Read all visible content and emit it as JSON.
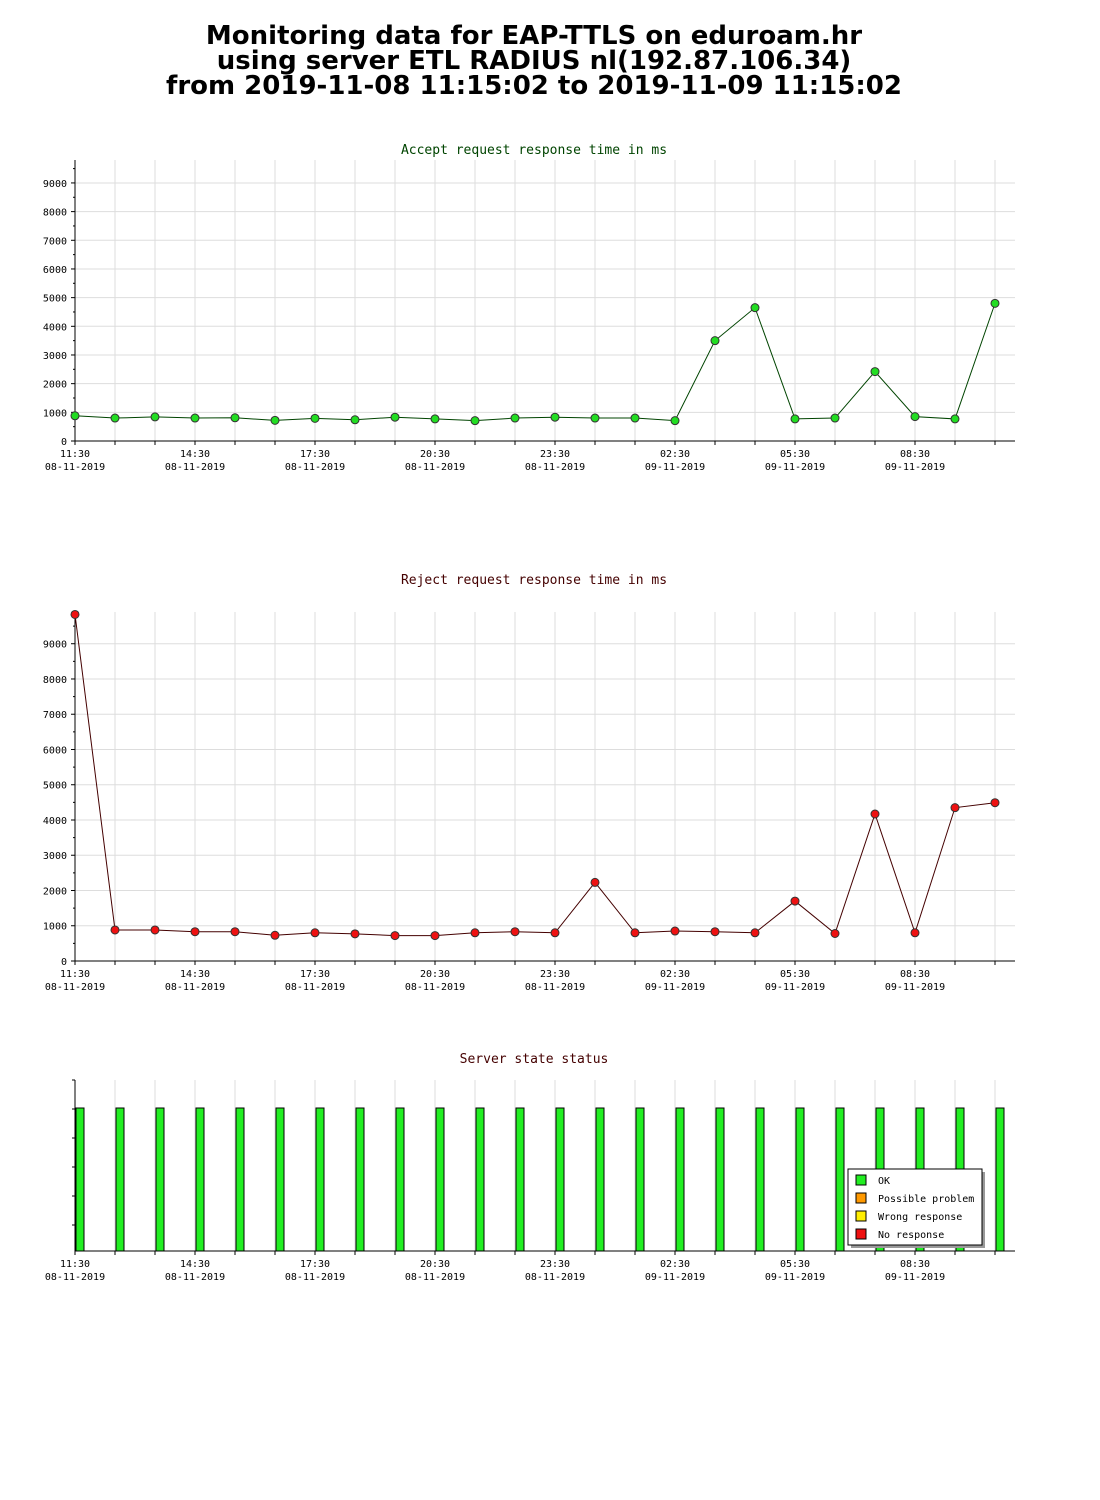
{
  "page": {
    "title_lines": [
      "Monitoring data for EAP-TTLS on eduroam.hr",
      "using server ETL RADIUS nl(192.87.106.34)",
      "from 2019-11-08 11:15:02 to 2019-11-09 11:15:02"
    ]
  },
  "chart_data": [
    {
      "type": "line",
      "title": "Accept request response time in ms",
      "title_color": "#004400",
      "line_color": "#004400",
      "marker_color": "#22dd22",
      "grid": true,
      "ylim": [
        0,
        9800
      ],
      "yticks": [
        0,
        1000,
        2000,
        3000,
        4000,
        5000,
        6000,
        7000,
        8000,
        9000
      ],
      "xlim": [
        0,
        23.5
      ],
      "xticks": [
        {
          "x": 0,
          "time": "11:30",
          "date": "08-11-2019"
        },
        {
          "x": 3,
          "time": "14:30",
          "date": "08-11-2019"
        },
        {
          "x": 6,
          "time": "17:30",
          "date": "08-11-2019"
        },
        {
          "x": 9,
          "time": "20:30",
          "date": "08-11-2019"
        },
        {
          "x": 12,
          "time": "23:30",
          "date": "08-11-2019"
        },
        {
          "x": 15,
          "time": "02:30",
          "date": "09-11-2019"
        },
        {
          "x": 18,
          "time": "05:30",
          "date": "09-11-2019"
        },
        {
          "x": 21,
          "time": "08:30",
          "date": "09-11-2019"
        }
      ],
      "values": [
        880,
        800,
        840,
        800,
        810,
        720,
        790,
        740,
        830,
        770,
        710,
        800,
        830,
        800,
        800,
        710,
        3500,
        4650,
        770,
        800,
        2420,
        850,
        770,
        4800
      ]
    },
    {
      "type": "line",
      "title": "Reject request response time in ms",
      "title_color": "#440000",
      "line_color": "#440000",
      "marker_color": "#ee1111",
      "grid": true,
      "ylim": [
        0,
        9900
      ],
      "yticks": [
        0,
        1000,
        2000,
        3000,
        4000,
        5000,
        6000,
        7000,
        8000,
        9000
      ],
      "xlim": [
        0,
        23.5
      ],
      "xticks": [
        {
          "x": 0,
          "time": "11:30",
          "date": "08-11-2019"
        },
        {
          "x": 3,
          "time": "14:30",
          "date": "08-11-2019"
        },
        {
          "x": 6,
          "time": "17:30",
          "date": "08-11-2019"
        },
        {
          "x": 9,
          "time": "20:30",
          "date": "08-11-2019"
        },
        {
          "x": 12,
          "time": "23:30",
          "date": "08-11-2019"
        },
        {
          "x": 15,
          "time": "02:30",
          "date": "09-11-2019"
        },
        {
          "x": 18,
          "time": "05:30",
          "date": "09-11-2019"
        },
        {
          "x": 21,
          "time": "08:30",
          "date": "09-11-2019"
        }
      ],
      "values": [
        9830,
        880,
        880,
        830,
        830,
        730,
        800,
        770,
        720,
        720,
        800,
        830,
        800,
        2230,
        800,
        850,
        830,
        800,
        1700,
        780,
        4170,
        800,
        4350,
        4490
      ]
    },
    {
      "type": "bar",
      "title": "Server state status",
      "title_color": "#440000",
      "xlim": [
        0,
        23.5
      ],
      "xticks": [
        {
          "x": 0,
          "time": "11:30",
          "date": "08-11-2019"
        },
        {
          "x": 3,
          "time": "14:30",
          "date": "08-11-2019"
        },
        {
          "x": 6,
          "time": "17:30",
          "date": "08-11-2019"
        },
        {
          "x": 9,
          "time": "20:30",
          "date": "08-11-2019"
        },
        {
          "x": 12,
          "time": "23:30",
          "date": "08-11-2019"
        },
        {
          "x": 15,
          "time": "02:30",
          "date": "09-11-2019"
        },
        {
          "x": 18,
          "time": "05:30",
          "date": "09-11-2019"
        },
        {
          "x": 21,
          "time": "08:30",
          "date": "09-11-2019"
        }
      ],
      "states": [
        "OK",
        "OK",
        "OK",
        "OK",
        "OK",
        "OK",
        "OK",
        "OK",
        "OK",
        "OK",
        "OK",
        "OK",
        "OK",
        "OK",
        "OK",
        "OK",
        "OK",
        "OK",
        "OK",
        "OK",
        "OK",
        "OK",
        "OK",
        "OK"
      ],
      "legend_position": "bottom-right",
      "legend": [
        {
          "label": "OK",
          "color": "#22ee22"
        },
        {
          "label": "Possible problem",
          "color": "#ff9900"
        },
        {
          "label": "Wrong response",
          "color": "#ffee00"
        },
        {
          "label": "No response",
          "color": "#ee1111"
        }
      ]
    }
  ]
}
